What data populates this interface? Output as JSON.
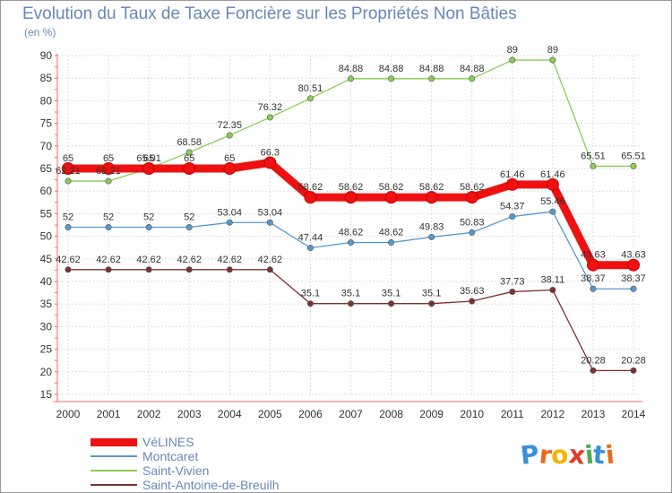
{
  "chart_data": {
    "type": "line",
    "title": "Evolution du Taux de Taxe Foncière sur les Propriétés Non Bâties",
    "subtitle": "(en %)",
    "categories": [
      "2000",
      "2001",
      "2002",
      "2003",
      "2004",
      "2005",
      "2006",
      "2007",
      "2008",
      "2009",
      "2010",
      "2011",
      "2012",
      "2013",
      "2014"
    ],
    "ylim": [
      15,
      90
    ],
    "yticks": [
      15,
      20,
      25,
      30,
      35,
      40,
      45,
      50,
      55,
      60,
      65,
      70,
      75,
      80,
      85,
      90
    ],
    "grid": true,
    "legend_position": "bottom-left",
    "series": [
      {
        "name": "Saint-Antoine-de-Breuilh",
        "color": "#7a3232",
        "values": [
          42.62,
          42.62,
          42.62,
          42.62,
          42.62,
          42.62,
          35.1,
          35.1,
          35.1,
          35.1,
          35.63,
          37.73,
          38.11,
          20.28,
          20.28
        ],
        "labels": [
          "42.62",
          "42.62",
          "42.62",
          "42.62",
          "42.62",
          "42.62",
          "35.1",
          "35.1",
          "35.1",
          "35.1",
          "35.63",
          "37.73",
          "38.11",
          "20.28",
          "20.28"
        ]
      },
      {
        "name": "Montcaret",
        "color": "#5599cc",
        "values": [
          52,
          52,
          52,
          52,
          53.04,
          53.04,
          47.44,
          48.62,
          48.62,
          49.83,
          50.83,
          54.37,
          55.46,
          38.37,
          38.37
        ],
        "labels": [
          "52",
          "52",
          "52",
          "52",
          "53.04",
          "53.04",
          "47.44",
          "48.62",
          "48.62",
          "49.83",
          "50.83",
          "54.37",
          "55.46",
          "38.37",
          "38.37"
        ]
      },
      {
        "name": "Saint-Vivien",
        "color": "#88cc55",
        "values": [
          62.21,
          62.21,
          65.01,
          68.58,
          72.35,
          76.32,
          80.51,
          84.88,
          84.88,
          84.88,
          84.88,
          89,
          89,
          65.51,
          65.51
        ],
        "labels": [
          "62.21",
          "62.21",
          "65.01",
          "68.58",
          "72.35",
          "76.32",
          "80.51",
          "84.88",
          "84.88",
          "84.88",
          "84.88",
          "89",
          "89",
          "65.51",
          "65.51"
        ]
      },
      {
        "name": "VéLINES",
        "color": "#ee1111",
        "values": [
          65,
          65,
          65,
          65,
          65,
          66.3,
          58.62,
          58.62,
          58.62,
          58.62,
          58.62,
          61.46,
          61.46,
          43.63,
          43.63
        ],
        "labels": [
          "65",
          "65",
          "65",
          "65",
          "65",
          "66.3",
          "58.62",
          "58.62",
          "58.62",
          "58.62",
          "58.62",
          "61.46",
          "61.46",
          "43.63",
          "43.63"
        ]
      }
    ],
    "legend": [
      "VéLINES",
      "Montcaret",
      "Saint-Vivien",
      "Saint-Antoine-de-Breuilh"
    ]
  },
  "brand": {
    "letters": [
      "P",
      "r",
      "o",
      "x",
      "i",
      "t",
      "i"
    ],
    "colors": [
      "#3a8fd8",
      "#e86a1a",
      "#f4b400",
      "#e03a2a",
      "#4caf50",
      "#3a8fd8",
      "#e86a1a"
    ]
  }
}
